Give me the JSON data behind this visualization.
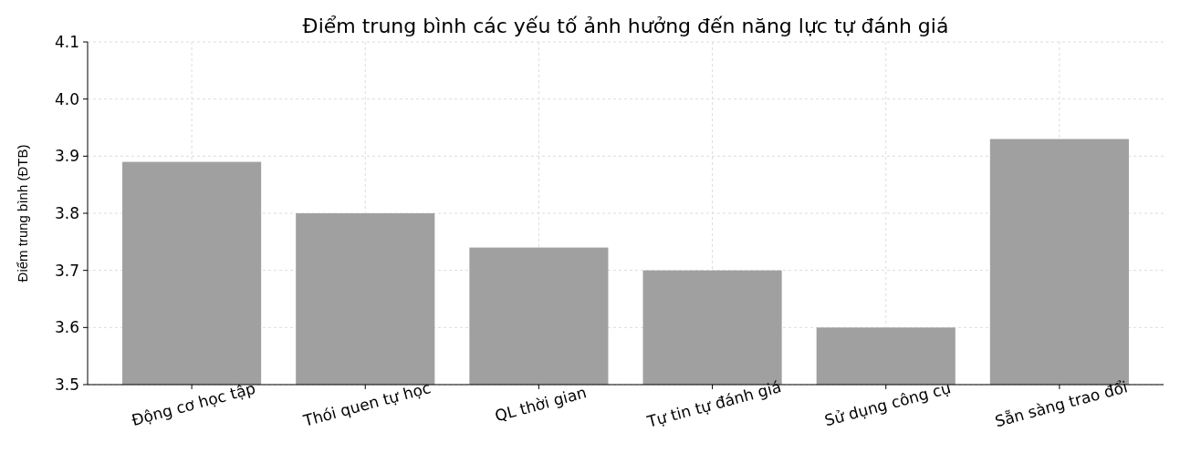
{
  "chart_data": {
    "type": "bar",
    "title": "Điểm trung bình các yếu tố ảnh hưởng đến năng lực tự đánh giá",
    "ylabel": "Điểm trung bình (ĐTB)",
    "categories": [
      "Động cơ học tập",
      "Thói quen tự học",
      "QL thời gian",
      "Tự tin tự đánh giá",
      "Sử dụng công cụ",
      "Sẵn sàng trao đổi"
    ],
    "values": [
      3.89,
      3.8,
      3.74,
      3.7,
      3.6,
      3.93
    ],
    "color": "#a0a0a0",
    "ylim": [
      3.5,
      4.1
    ],
    "yticks": [
      3.5,
      3.6,
      3.7,
      3.8,
      3.9,
      {
        "value": 4,
        "label": "4.0"
      },
      4.1
    ],
    "grid": true
  }
}
